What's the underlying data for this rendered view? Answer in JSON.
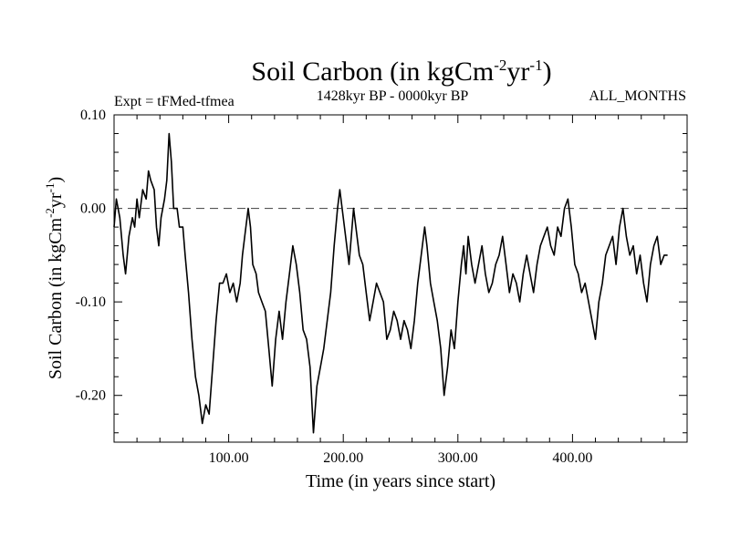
{
  "chart_data": {
    "type": "line",
    "title": "Soil Carbon (in kgCm",
    "title_sup1": "-2",
    "title_mid": "yr",
    "title_sup2": "-1",
    "title_end": ")",
    "subtitle": "1428kyr BP - 0000kyr BP",
    "experiment": "Expt = tFMed-tfmea",
    "season": "ALL_MONTHS",
    "xlabel": "Time (in years since start)",
    "ylabel": "Soil Carbon (in kgCm",
    "ylabel_sup1": "-2",
    "ylabel_mid": "yr",
    "ylabel_sup2": "-1",
    "ylabel_end": ")",
    "xlim": [
      0,
      500
    ],
    "ylim": [
      -0.25,
      0.1
    ],
    "x_major_ticks": [
      100,
      200,
      300,
      400
    ],
    "x_tick_labels": [
      "100.00",
      "200.00",
      "300.00",
      "400.00"
    ],
    "y_major_ticks": [
      0.1,
      0.0,
      -0.1,
      -0.2
    ],
    "y_tick_labels": [
      "0.10",
      "0.00",
      "-0.10",
      "-0.20"
    ],
    "reference_line": {
      "y": 0.0,
      "style": "dashed"
    },
    "series": [
      {
        "name": "Soil Carbon",
        "color": "#000000",
        "points": [
          [
            0,
            -0.02
          ],
          [
            2,
            0.01
          ],
          [
            5,
            -0.01
          ],
          [
            8,
            -0.05
          ],
          [
            10,
            -0.07
          ],
          [
            13,
            -0.03
          ],
          [
            16,
            -0.01
          ],
          [
            18,
            -0.02
          ],
          [
            20,
            0.01
          ],
          [
            22,
            -0.01
          ],
          [
            25,
            0.02
          ],
          [
            28,
            0.01
          ],
          [
            30,
            0.04
          ],
          [
            32,
            0.03
          ],
          [
            35,
            0.02
          ],
          [
            37,
            -0.02
          ],
          [
            39,
            -0.04
          ],
          [
            41,
            -0.01
          ],
          [
            44,
            0.01
          ],
          [
            46,
            0.03
          ],
          [
            48,
            0.08
          ],
          [
            50,
            0.05
          ],
          [
            52,
            0.0
          ],
          [
            55,
            0.0
          ],
          [
            57,
            -0.02
          ],
          [
            60,
            -0.02
          ],
          [
            62,
            -0.05
          ],
          [
            65,
            -0.09
          ],
          [
            68,
            -0.14
          ],
          [
            71,
            -0.18
          ],
          [
            74,
            -0.2
          ],
          [
            77,
            -0.23
          ],
          [
            80,
            -0.21
          ],
          [
            83,
            -0.22
          ],
          [
            86,
            -0.17
          ],
          [
            89,
            -0.12
          ],
          [
            92,
            -0.08
          ],
          [
            95,
            -0.08
          ],
          [
            98,
            -0.07
          ],
          [
            101,
            -0.09
          ],
          [
            104,
            -0.08
          ],
          [
            107,
            -0.1
          ],
          [
            110,
            -0.08
          ],
          [
            112,
            -0.05
          ],
          [
            114,
            -0.03
          ],
          [
            117,
            0.0
          ],
          [
            119,
            -0.02
          ],
          [
            121,
            -0.06
          ],
          [
            124,
            -0.07
          ],
          [
            126,
            -0.09
          ],
          [
            129,
            -0.1
          ],
          [
            132,
            -0.11
          ],
          [
            135,
            -0.15
          ],
          [
            138,
            -0.19
          ],
          [
            141,
            -0.14
          ],
          [
            144,
            -0.11
          ],
          [
            147,
            -0.14
          ],
          [
            150,
            -0.1
          ],
          [
            153,
            -0.07
          ],
          [
            156,
            -0.04
          ],
          [
            159,
            -0.06
          ],
          [
            162,
            -0.09
          ],
          [
            165,
            -0.13
          ],
          [
            168,
            -0.14
          ],
          [
            171,
            -0.17
          ],
          [
            174,
            -0.24
          ],
          [
            177,
            -0.19
          ],
          [
            180,
            -0.17
          ],
          [
            183,
            -0.15
          ],
          [
            186,
            -0.12
          ],
          [
            189,
            -0.09
          ],
          [
            192,
            -0.04
          ],
          [
            195,
            0.0
          ],
          [
            197,
            0.02
          ],
          [
            200,
            -0.01
          ],
          [
            203,
            -0.04
          ],
          [
            205,
            -0.06
          ],
          [
            207,
            -0.03
          ],
          [
            209,
            0.0
          ],
          [
            211,
            -0.02
          ],
          [
            214,
            -0.05
          ],
          [
            217,
            -0.06
          ],
          [
            220,
            -0.09
          ],
          [
            223,
            -0.12
          ],
          [
            226,
            -0.1
          ],
          [
            229,
            -0.08
          ],
          [
            232,
            -0.09
          ],
          [
            235,
            -0.1
          ],
          [
            238,
            -0.14
          ],
          [
            241,
            -0.13
          ],
          [
            244,
            -0.11
          ],
          [
            247,
            -0.12
          ],
          [
            250,
            -0.14
          ],
          [
            253,
            -0.12
          ],
          [
            256,
            -0.13
          ],
          [
            259,
            -0.15
          ],
          [
            262,
            -0.12
          ],
          [
            265,
            -0.08
          ],
          [
            268,
            -0.05
          ],
          [
            271,
            -0.02
          ],
          [
            273,
            -0.04
          ],
          [
            276,
            -0.08
          ],
          [
            279,
            -0.1
          ],
          [
            282,
            -0.12
          ],
          [
            285,
            -0.15
          ],
          [
            288,
            -0.2
          ],
          [
            291,
            -0.17
          ],
          [
            294,
            -0.13
          ],
          [
            297,
            -0.15
          ],
          [
            300,
            -0.1
          ],
          [
            303,
            -0.06
          ],
          [
            305,
            -0.04
          ],
          [
            307,
            -0.07
          ],
          [
            309,
            -0.03
          ],
          [
            312,
            -0.06
          ],
          [
            315,
            -0.08
          ],
          [
            318,
            -0.06
          ],
          [
            321,
            -0.04
          ],
          [
            324,
            -0.07
          ],
          [
            327,
            -0.09
          ],
          [
            330,
            -0.08
          ],
          [
            333,
            -0.06
          ],
          [
            336,
            -0.05
          ],
          [
            339,
            -0.03
          ],
          [
            342,
            -0.06
          ],
          [
            345,
            -0.09
          ],
          [
            348,
            -0.07
          ],
          [
            351,
            -0.08
          ],
          [
            354,
            -0.1
          ],
          [
            357,
            -0.07
          ],
          [
            360,
            -0.05
          ],
          [
            363,
            -0.07
          ],
          [
            366,
            -0.09
          ],
          [
            369,
            -0.06
          ],
          [
            372,
            -0.04
          ],
          [
            375,
            -0.03
          ],
          [
            378,
            -0.02
          ],
          [
            381,
            -0.04
          ],
          [
            384,
            -0.05
          ],
          [
            387,
            -0.02
          ],
          [
            390,
            -0.03
          ],
          [
            393,
            0.0
          ],
          [
            396,
            0.01
          ],
          [
            399,
            -0.02
          ],
          [
            402,
            -0.06
          ],
          [
            405,
            -0.07
          ],
          [
            408,
            -0.09
          ],
          [
            411,
            -0.08
          ],
          [
            414,
            -0.1
          ],
          [
            417,
            -0.12
          ],
          [
            420,
            -0.14
          ],
          [
            423,
            -0.1
          ],
          [
            426,
            -0.08
          ],
          [
            429,
            -0.05
          ],
          [
            432,
            -0.04
          ],
          [
            435,
            -0.03
          ],
          [
            438,
            -0.06
          ],
          [
            441,
            -0.02
          ],
          [
            444,
            0.0
          ],
          [
            447,
            -0.03
          ],
          [
            450,
            -0.05
          ],
          [
            453,
            -0.04
          ],
          [
            456,
            -0.07
          ],
          [
            459,
            -0.05
          ],
          [
            462,
            -0.08
          ],
          [
            465,
            -0.1
          ],
          [
            468,
            -0.06
          ],
          [
            471,
            -0.04
          ],
          [
            474,
            -0.03
          ],
          [
            477,
            -0.06
          ],
          [
            480,
            -0.05
          ],
          [
            483,
            -0.05
          ]
        ]
      }
    ]
  }
}
